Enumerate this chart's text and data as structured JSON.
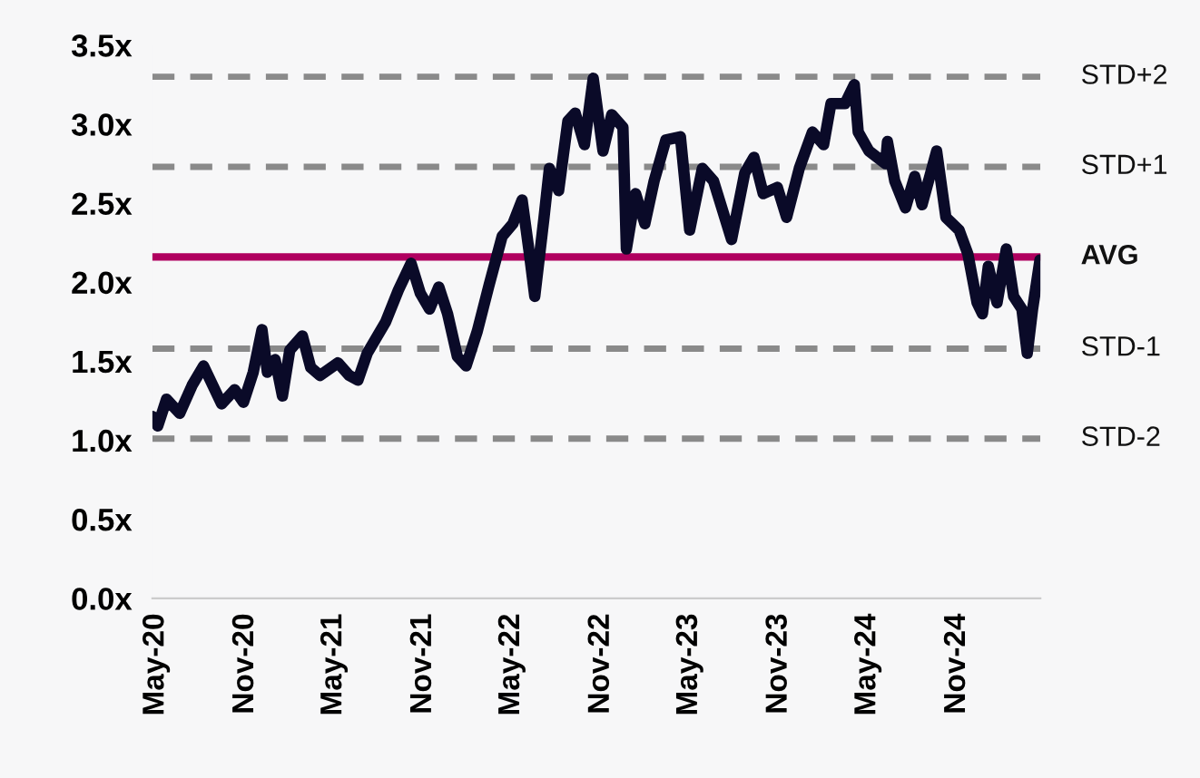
{
  "chart_data": {
    "type": "line",
    "x": [
      "2020-04-24",
      "2020-05-05",
      "2020-05-23",
      "2020-06-19",
      "2020-07-15",
      "2020-08-07",
      "2020-09-13",
      "2020-10-10",
      "2020-10-28",
      "2020-11-17",
      "2020-12-05",
      "2020-12-16",
      "2021-01-01",
      "2021-01-16",
      "2021-01-31",
      "2021-02-26",
      "2021-03-15",
      "2021-04-03",
      "2021-05-10",
      "2021-06-02",
      "2021-06-20",
      "2021-07-09",
      "2021-08-16",
      "2021-09-11",
      "2021-10-07",
      "2021-10-26",
      "2021-11-14",
      "2021-12-03",
      "2021-12-21",
      "2022-01-10",
      "2022-01-28",
      "2022-02-20",
      "2022-03-16",
      "2022-04-12",
      "2022-05-04",
      "2022-05-23",
      "2022-06-07",
      "2022-06-18",
      "2022-07-07",
      "2022-07-18",
      "2022-08-06",
      "2022-08-25",
      "2022-09-09",
      "2022-09-28",
      "2022-10-16",
      "2022-11-05",
      "2022-11-23",
      "2022-12-16",
      "2022-12-23",
      "2023-01-11",
      "2023-01-30",
      "2023-02-18",
      "2023-03-14",
      "2023-04-13",
      "2023-05-02",
      "2023-05-28",
      "2023-06-20",
      "2023-07-27",
      "2023-08-23",
      "2023-09-11",
      "2023-09-30",
      "2023-10-29",
      "2023-11-17",
      "2023-12-13",
      "2024-01-09",
      "2024-02-01",
      "2024-02-16",
      "2024-03-16",
      "2024-04-04",
      "2024-04-12",
      "2024-05-04",
      "2024-06-07",
      "2024-06-11",
      "2024-06-26",
      "2024-07-18",
      "2024-08-06",
      "2024-08-21",
      "2024-09-20",
      "2024-10-09",
      "2024-11-05",
      "2024-11-23",
      "2024-12-12",
      "2024-12-23",
      "2025-01-04",
      "2025-01-22",
      "2025-02-10",
      "2025-02-25",
      "2025-03-14",
      "2025-03-25",
      "2025-04-05",
      "2025-04-20"
    ],
    "series": [
      {
        "color": "#0a0a28",
        "values": [
          1.15,
          1.09,
          1.26,
          1.17,
          1.35,
          1.47,
          1.23,
          1.32,
          1.24,
          1.43,
          1.7,
          1.43,
          1.51,
          1.28,
          1.57,
          1.66,
          1.46,
          1.41,
          1.49,
          1.41,
          1.38,
          1.55,
          1.75,
          1.95,
          2.12,
          1.93,
          1.83,
          1.97,
          1.8,
          1.53,
          1.47,
          1.69,
          1.98,
          2.29,
          2.37,
          2.52,
          2.18,
          1.91,
          2.41,
          2.72,
          2.58,
          3.02,
          3.07,
          2.87,
          3.29,
          2.83,
          3.06,
          2.98,
          2.21,
          2.56,
          2.37,
          2.64,
          2.9,
          2.92,
          2.33,
          2.72,
          2.64,
          2.27,
          2.69,
          2.79,
          2.56,
          2.6,
          2.41,
          2.72,
          2.95,
          2.87,
          3.13,
          3.13,
          3.25,
          2.95,
          2.83,
          2.75,
          2.89,
          2.64,
          2.47,
          2.67,
          2.49,
          2.83,
          2.41,
          2.33,
          2.18,
          1.87,
          1.8,
          2.1,
          1.87,
          2.21,
          1.91,
          1.83,
          1.55,
          1.83,
          2.14
        ]
      }
    ],
    "xlim": [
      "2020-04-24",
      "2025-04-21"
    ],
    "xticks": [
      {
        "value": "2020-05-01",
        "label": "May-20"
      },
      {
        "value": "2020-11-01",
        "label": "Nov-20"
      },
      {
        "value": "2021-05-01",
        "label": "May-21"
      },
      {
        "value": "2021-11-01",
        "label": "Nov-21"
      },
      {
        "value": "2022-05-01",
        "label": "May-22"
      },
      {
        "value": "2022-11-01",
        "label": "Nov-22"
      },
      {
        "value": "2023-05-01",
        "label": "May-23"
      },
      {
        "value": "2023-11-01",
        "label": "Nov-23"
      },
      {
        "value": "2024-05-01",
        "label": "May-24"
      },
      {
        "value": "2024-11-01",
        "label": "Nov-24"
      }
    ],
    "ylim": [
      0,
      3.5
    ],
    "yticks": [
      {
        "value": 0,
        "label": "0.0x"
      },
      {
        "value": 0.5,
        "label": "0.5x"
      },
      {
        "value": 1,
        "label": "1.0x"
      },
      {
        "value": 1.5,
        "label": "1.5x"
      },
      {
        "value": 2,
        "label": "2.0x"
      },
      {
        "value": 2.5,
        "label": "2.5x"
      },
      {
        "value": 3,
        "label": "3.0x"
      },
      {
        "value": 3.5,
        "label": "3.5x"
      }
    ],
    "ref_lines": [
      {
        "axis": "y",
        "value": 3.3,
        "label": "STD+2",
        "color": "#8a8a8a",
        "line_style": "dashed"
      },
      {
        "axis": "y",
        "value": 2.73,
        "label": "STD+1",
        "color": "#8a8a8a",
        "line_style": "dashed"
      },
      {
        "axis": "y",
        "value": 2.16,
        "label": "AVG",
        "color": "#b0005f",
        "line_style": "solid"
      },
      {
        "axis": "y",
        "value": 1.58,
        "label": "STD-1",
        "color": "#8a8a8a",
        "line_style": "dashed"
      },
      {
        "axis": "y",
        "value": 1.01,
        "label": "STD-2",
        "color": "#8a8a8a",
        "line_style": "dashed"
      }
    ],
    "grid": false,
    "legend": false,
    "line_style": "solid"
  }
}
